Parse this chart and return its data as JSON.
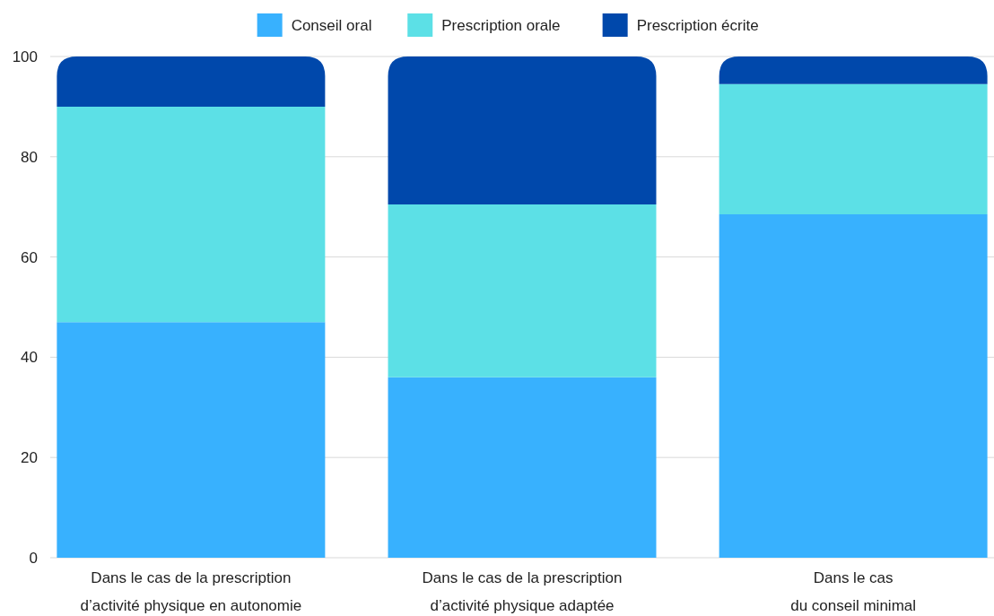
{
  "chart_data": {
    "type": "bar",
    "stacked": true,
    "categories": [
      "Dans le cas de la prescription\nd’activité physique en autonomie",
      "Dans le cas de la prescription\nd’activité physique adaptée",
      "Dans le cas\ndu conseil minimal"
    ],
    "series": [
      {
        "name": "Conseil oral",
        "color": "#38b1fe",
        "values": [
          47,
          36,
          68.5
        ]
      },
      {
        "name": "Prescription orale",
        "color": "#5ce0e6",
        "values": [
          43,
          34.5,
          26
        ]
      },
      {
        "name": "Prescription écrite",
        "color": "#0048ab",
        "values": [
          10,
          29.5,
          5.5
        ]
      }
    ],
    "ylim": [
      0,
      100
    ],
    "yticks": [
      0,
      20,
      40,
      60,
      80,
      100
    ],
    "grid": "y",
    "legend": "top"
  }
}
